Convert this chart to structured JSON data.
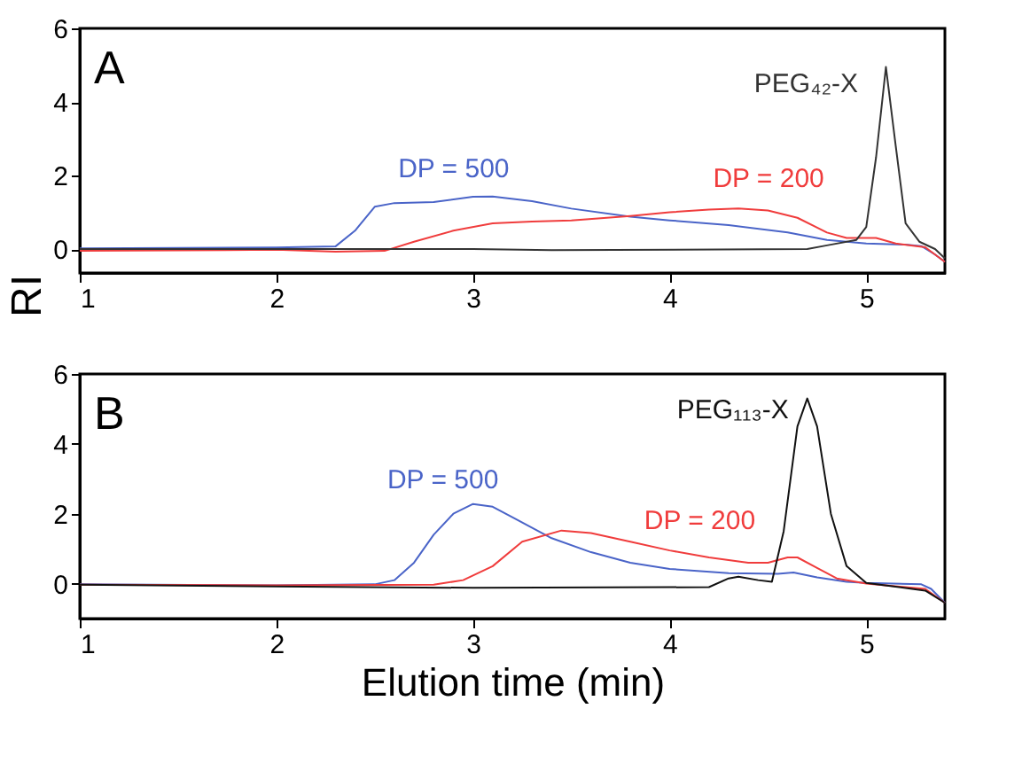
{
  "chart_data": [
    {
      "type": "line",
      "ylabel": "RI",
      "annotations": [
        "A"
      ],
      "xlim": [
        1,
        5.4
      ],
      "xticks": [
        1,
        2,
        3,
        4,
        5
      ],
      "ylim": [
        -0.65,
        6
      ],
      "yticks": [
        0,
        2,
        4,
        6
      ],
      "grid": false,
      "series": [
        {
          "name": "DP = 500",
          "color": "#4a64c8",
          "x": [
            1,
            2,
            2.3,
            2.4,
            2.5,
            2.6,
            2.8,
            3.0,
            3.1,
            3.3,
            3.5,
            3.8,
            4.0,
            4.3,
            4.6,
            4.8,
            5.0,
            5.2,
            5.28,
            5.35,
            5.4
          ],
          "values": [
            0.02,
            0.04,
            0.07,
            0.5,
            1.15,
            1.25,
            1.28,
            1.42,
            1.43,
            1.3,
            1.1,
            0.88,
            0.78,
            0.65,
            0.45,
            0.25,
            0.15,
            0.12,
            0.08,
            -0.15,
            -0.35
          ]
        },
        {
          "name": "DP = 200",
          "color": "#f03c3c",
          "x": [
            1,
            2,
            2.3,
            2.55,
            2.7,
            2.9,
            3.1,
            3.3,
            3.5,
            3.8,
            4.0,
            4.2,
            4.35,
            4.5,
            4.65,
            4.8,
            4.9,
            5.05,
            5.15,
            5.3,
            5.4
          ],
          "values": [
            -0.05,
            -0.02,
            -0.07,
            -0.05,
            0.2,
            0.5,
            0.7,
            0.75,
            0.78,
            0.9,
            1.0,
            1.07,
            1.1,
            1.05,
            0.85,
            0.45,
            0.3,
            0.3,
            0.15,
            0.05,
            -0.35
          ]
        },
        {
          "name": "PEG₄₂-X",
          "color": "#333333",
          "x": [
            1,
            3,
            3.4,
            4.7,
            4.8,
            4.95,
            5.0,
            5.05,
            5.1,
            5.15,
            5.2,
            5.27,
            5.35,
            5.4
          ],
          "values": [
            0,
            0,
            -0.03,
            0,
            0.1,
            0.25,
            0.6,
            2.5,
            4.95,
            2.8,
            0.7,
            0.2,
            0,
            -0.25
          ]
        }
      ]
    },
    {
      "type": "line",
      "xlabel": "Elution time (min)",
      "annotations": [
        "B"
      ],
      "xlim": [
        1,
        5.4
      ],
      "xticks": [
        1,
        2,
        3,
        4,
        5
      ],
      "ylim": [
        -1,
        6
      ],
      "yticks": [
        0,
        2,
        4,
        6
      ],
      "grid": false,
      "series": [
        {
          "name": "DP = 500",
          "color": "#4a64c8",
          "x": [
            1,
            2,
            2.5,
            2.6,
            2.7,
            2.8,
            2.9,
            3.0,
            3.1,
            3.2,
            3.4,
            3.6,
            3.8,
            4.0,
            4.3,
            4.55,
            4.63,
            4.75,
            4.9,
            5.0,
            5.28,
            5.33,
            5.4
          ],
          "values": [
            -0.02,
            -0.05,
            -0.02,
            0.1,
            0.6,
            1.4,
            2.0,
            2.28,
            2.2,
            1.9,
            1.3,
            0.9,
            0.6,
            0.42,
            0.3,
            0.28,
            0.32,
            0.18,
            0.05,
            0.02,
            -0.02,
            -0.15,
            -0.55
          ]
        },
        {
          "name": "DP = 200",
          "color": "#f03c3c",
          "x": [
            1,
            2,
            2.8,
            2.95,
            3.1,
            3.25,
            3.45,
            3.6,
            3.8,
            4.0,
            4.2,
            4.4,
            4.5,
            4.6,
            4.65,
            4.75,
            4.85,
            5.0,
            5.3,
            5.4
          ],
          "values": [
            -0.03,
            -0.05,
            -0.03,
            0.1,
            0.5,
            1.2,
            1.52,
            1.45,
            1.2,
            0.95,
            0.75,
            0.6,
            0.6,
            0.75,
            0.75,
            0.45,
            0.15,
            0,
            -0.15,
            -0.55
          ]
        },
        {
          "name": "PEG₁₁₃-X",
          "color": "#111111",
          "x": [
            1,
            2,
            3,
            4.2,
            4.3,
            4.35,
            4.45,
            4.52,
            4.58,
            4.65,
            4.7,
            4.75,
            4.82,
            4.9,
            5.0,
            5.3,
            5.4
          ],
          "values": [
            -0.03,
            -0.08,
            -0.12,
            -0.1,
            0.15,
            0.2,
            0.1,
            0.05,
            1.5,
            4.5,
            5.3,
            4.5,
            2.0,
            0.5,
            0.02,
            -0.2,
            -0.55
          ]
        }
      ]
    }
  ]
}
